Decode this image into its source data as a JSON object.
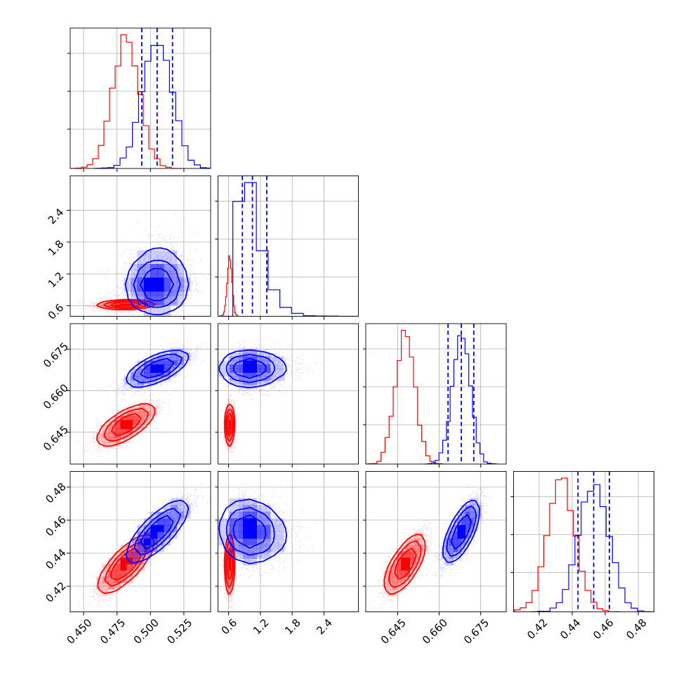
{
  "chart_data": {
    "type": "corner",
    "grid": true,
    "colors": {
      "series_a": "#ff0000",
      "series_b": "#0000ff"
    },
    "params": [
      {
        "range": [
          0.44,
          0.545
        ],
        "ticks": [
          0.45,
          0.475,
          0.5,
          0.525
        ],
        "tick_labels": [
          "0.450",
          "0.475",
          "0.500",
          "0.525"
        ]
      },
      {
        "range": [
          0.4,
          3.05
        ],
        "ticks": [
          0.6,
          1.2,
          1.8,
          2.4
        ],
        "tick_labels": [
          "0.6",
          "1.2",
          "1.8",
          "2.4"
        ]
      },
      {
        "range": [
          0.6335,
          0.6842
        ],
        "ticks": [
          0.645,
          0.66,
          0.675
        ],
        "tick_labels": [
          "0.645",
          "0.660",
          "0.675"
        ]
      },
      {
        "range": [
          0.4045,
          0.4895
        ],
        "ticks": [
          0.42,
          0.44,
          0.46,
          0.48
        ],
        "tick_labels": [
          "0.42",
          "0.44",
          "0.46",
          "0.48"
        ]
      }
    ],
    "series": [
      {
        "name": "",
        "color": "#ff0000",
        "median": [
          0.482,
          0.62,
          0.6478,
          0.4335
        ],
        "sigma": [
          0.01,
          0.045,
          0.0035,
          0.0085
        ],
        "correlation": [
          [
            1.0,
            0.1,
            0.75,
            0.85
          ],
          [
            0.1,
            1.0,
            0.05,
            0.05
          ],
          [
            0.75,
            0.05,
            1.0,
            0.75
          ],
          [
            0.85,
            0.05,
            0.75,
            1.0
          ]
        ],
        "quantiles": null
      },
      {
        "name": "",
        "color": "#0000ff",
        "median": [
          0.505,
          1.05,
          0.668,
          0.453
        ],
        "sigma": [
          0.011,
          0.22,
          0.0032,
          0.009
        ],
        "correlation": [
          [
            1.0,
            0.05,
            0.7,
            0.85
          ],
          [
            0.05,
            1.0,
            0.0,
            -0.15
          ],
          [
            0.7,
            0.0,
            1.0,
            0.75
          ],
          [
            0.85,
            -0.15,
            0.75,
            1.0
          ]
        ],
        "quantiles": [
          [
            0.4935,
            0.505,
            0.5165
          ],
          [
            0.86,
            1.05,
            1.32
          ],
          [
            0.6632,
            0.668,
            0.6725
          ],
          [
            0.4435,
            0.453,
            0.4625
          ]
        ]
      }
    ]
  }
}
